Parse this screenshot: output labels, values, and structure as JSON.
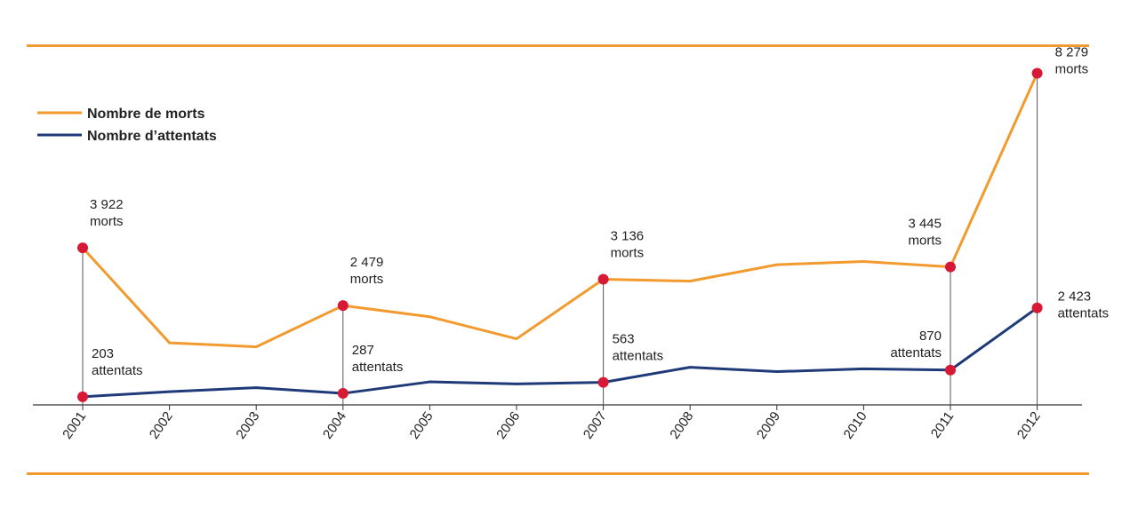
{
  "colors": {
    "deaths": "#f29a2e",
    "attacks": "#1f3a78",
    "marker": "#d71935",
    "rule": "#f29a2e",
    "axis": "#333333"
  },
  "chart_data": {
    "type": "line",
    "title": "",
    "xlabel": "",
    "ylabel": "",
    "legend_position": "top-left",
    "categories": [
      "2001",
      "2002",
      "2003",
      "2004",
      "2005",
      "2006",
      "2007",
      "2008",
      "2009",
      "2010",
      "2011",
      "2012"
    ],
    "ylim": [
      0,
      9000
    ],
    "series": [
      {
        "name": "Nombre de morts",
        "values": [
          3922,
          1550,
          1450,
          2479,
          2200,
          1650,
          3136,
          3090,
          3500,
          3580,
          3445,
          8279
        ]
      },
      {
        "name": "Nombre d’attentats",
        "values": [
          203,
          330,
          430,
          287,
          575,
          525,
          563,
          940,
          830,
          900,
          870,
          2423
        ]
      }
    ],
    "annotations": [
      {
        "category": "2001",
        "series": 0,
        "lines": [
          "3 922",
          "morts"
        ]
      },
      {
        "category": "2001",
        "series": 1,
        "lines": [
          "203",
          "attentats"
        ]
      },
      {
        "category": "2004",
        "series": 0,
        "lines": [
          "2 479",
          "morts"
        ]
      },
      {
        "category": "2004",
        "series": 1,
        "lines": [
          "287",
          "attentats"
        ]
      },
      {
        "category": "2007",
        "series": 0,
        "lines": [
          "3 136",
          "morts"
        ]
      },
      {
        "category": "2007",
        "series": 1,
        "lines": [
          "563",
          "attentats"
        ]
      },
      {
        "category": "2011",
        "series": 0,
        "lines": [
          "3 445",
          "morts"
        ]
      },
      {
        "category": "2011",
        "series": 1,
        "lines": [
          "870",
          "attentats"
        ]
      },
      {
        "category": "2012",
        "series": 0,
        "lines": [
          "8 279",
          "morts"
        ]
      },
      {
        "category": "2012",
        "series": 1,
        "lines": [
          "2 423",
          "attentats"
        ]
      }
    ]
  }
}
